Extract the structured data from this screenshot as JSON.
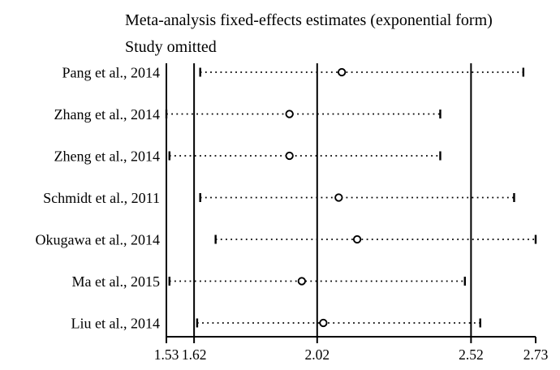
{
  "title": "Meta-analysis fixed-effects estimates (exponential form)",
  "subtitle": "Study omitted",
  "chart_data": {
    "type": "scatter",
    "subtype": "leave-one-out-sensitivity-forest",
    "title": "Meta-analysis fixed-effects estimates (exponential form)",
    "subtitle": "Study omitted",
    "xlabel": "",
    "ylabel": "",
    "grid": false,
    "legend": "none",
    "axis": {
      "min": 1.53,
      "max": 2.73,
      "ticks": [
        1.53,
        1.62,
        2.02,
        2.52,
        2.73
      ],
      "tick_labels": [
        "1.53",
        "1.62",
        "2.02",
        "2.52",
        "2.73"
      ]
    },
    "reference_lines": {
      "lower_ci": 1.62,
      "combined_estimate": 2.02,
      "upper_ci": 2.52
    },
    "studies": [
      {
        "label": "Pang et al., 2014",
        "estimate": 2.1,
        "lower": 1.64,
        "upper": 2.69
      },
      {
        "label": "Zhang et al., 2014",
        "estimate": 1.93,
        "lower": 1.53,
        "upper": 2.42
      },
      {
        "label": "Zheng et al., 2014",
        "estimate": 1.93,
        "lower": 1.54,
        "upper": 2.42
      },
      {
        "label": "Schmidt et al., 2011",
        "estimate": 2.09,
        "lower": 1.64,
        "upper": 2.66
      },
      {
        "label": "Okugawa et al., 2014",
        "estimate": 2.15,
        "lower": 1.69,
        "upper": 2.73
      },
      {
        "label": "Ma et al., 2015",
        "estimate": 1.97,
        "lower": 1.54,
        "upper": 2.5
      },
      {
        "label": "Liu et al., 2014",
        "estimate": 2.04,
        "lower": 1.63,
        "upper": 2.55
      }
    ],
    "colors": {
      "line": "#000000",
      "marker_stroke": "#000000",
      "marker_fill": "#ffffff",
      "background": "#ffffff"
    }
  }
}
